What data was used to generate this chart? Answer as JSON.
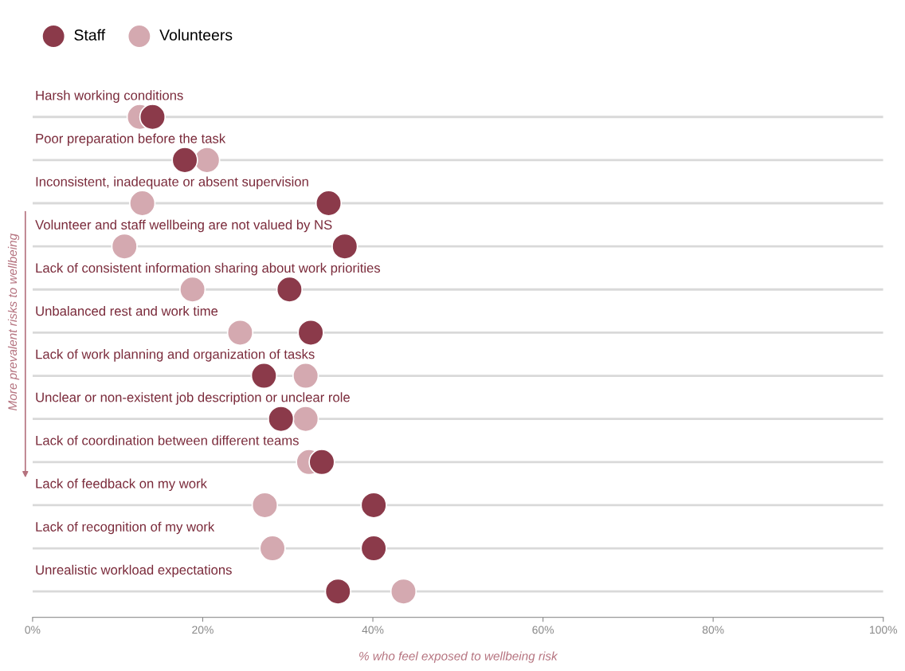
{
  "chart_data": {
    "type": "scatter",
    "xlabel": "% who feel exposed to wellbeing risk",
    "categories": [
      "Harsh working conditions",
      "Poor preparation before the task",
      "Inconsistent, inadequate or absent supervision",
      "Volunteer and staff wellbeing are not valued by NS",
      "Lack of consistent information sharing about work priorities",
      "Unbalanced rest and work time",
      "Lack of work planning and organization of tasks",
      "Unclear or non-existent job description or unclear role",
      "Lack of coordination between different teams",
      "Lack of feedback on my work",
      "Lack of recognition of my work",
      "Unrealistic workload expectations"
    ],
    "series": [
      {
        "name": "Staff",
        "color": "#8b3a4a",
        "values": [
          14.1,
          17.9,
          34.8,
          36.7,
          30.2,
          32.7,
          27.2,
          29.2,
          34,
          40.1,
          40.1,
          35.9
        ]
      },
      {
        "name": "Volunteers",
        "color": "#d4a9b0",
        "values": [
          12.6,
          20.5,
          12.9,
          10.8,
          18.8,
          24.4,
          32.1,
          32.1,
          32.5,
          27.3,
          28.2,
          43.6
        ]
      }
    ],
    "xlim": [
      0,
      100
    ],
    "xticks": [
      {
        "value": 0,
        "label": "0%"
      },
      {
        "value": 20,
        "label": "20%"
      },
      {
        "value": 40,
        "label": "40%"
      },
      {
        "value": 60,
        "label": "60%"
      },
      {
        "value": 80,
        "label": "80%"
      },
      {
        "value": 100,
        "label": "100%"
      }
    ],
    "orientation": "horizontal",
    "grid": "y",
    "legend": "top left",
    "marker": "circle",
    "annotations": [
      "More prevalent risks to wellbeing"
    ]
  }
}
